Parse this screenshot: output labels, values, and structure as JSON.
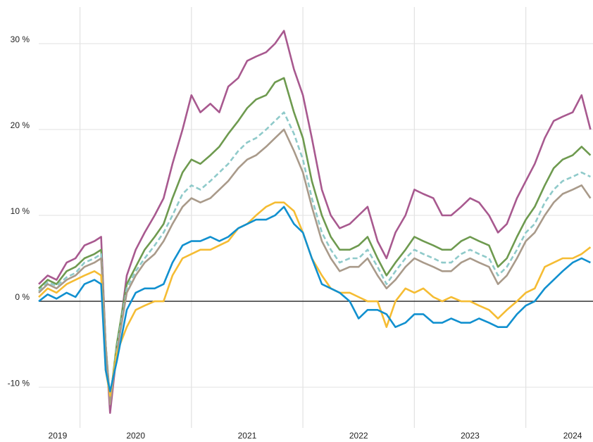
{
  "chart_data": {
    "type": "line",
    "x": [
      2019.63,
      2019.71,
      2019.79,
      2019.88,
      2019.96,
      2020.04,
      2020.13,
      2020.19,
      2020.23,
      2020.27,
      2020.33,
      2020.42,
      2020.5,
      2020.58,
      2020.67,
      2020.75,
      2020.83,
      2020.92,
      2021.0,
      2021.08,
      2021.17,
      2021.25,
      2021.33,
      2021.42,
      2021.5,
      2021.58,
      2021.67,
      2021.75,
      2021.83,
      2021.92,
      2022.0,
      2022.08,
      2022.17,
      2022.25,
      2022.33,
      2022.42,
      2022.5,
      2022.58,
      2022.67,
      2022.75,
      2022.83,
      2022.92,
      2023.0,
      2023.08,
      2023.17,
      2023.25,
      2023.33,
      2023.42,
      2023.5,
      2023.58,
      2023.67,
      2023.75,
      2023.83,
      2023.92,
      2024.0,
      2024.08,
      2024.17,
      2024.25,
      2024.33,
      2024.42,
      2024.5,
      2024.58
    ],
    "series": [
      {
        "color": "#a8598f",
        "dashed": false,
        "values": [
          2,
          3,
          2.5,
          4.5,
          5,
          6.5,
          7,
          7.5,
          -5,
          -13,
          -6,
          3,
          6,
          8,
          10,
          12,
          16,
          20,
          24,
          22,
          23,
          22,
          25,
          26,
          28,
          28.5,
          29,
          30,
          31.5,
          27,
          24,
          19,
          13,
          10,
          8.5,
          9,
          10,
          11,
          7,
          5,
          8,
          10,
          13,
          12.5,
          12,
          10,
          10,
          11,
          12,
          11.5,
          10,
          8,
          9,
          12,
          14,
          16,
          19,
          21,
          21.5,
          22,
          24,
          20
        ]
      },
      {
        "color": "#6e9a4f",
        "dashed": false,
        "values": [
          1.5,
          2.5,
          2,
          3.5,
          4,
          5,
          5.5,
          6,
          -5,
          -11.5,
          -5,
          2,
          4,
          6,
          7.5,
          9,
          12,
          15,
          16.5,
          16,
          17,
          18,
          19.5,
          21,
          22.5,
          23.5,
          24,
          25.5,
          26,
          22,
          19,
          14,
          10,
          7.5,
          6,
          6,
          6.5,
          7.5,
          5,
          3,
          4.5,
          6,
          7.5,
          7,
          6.5,
          6,
          6,
          7,
          7.5,
          7,
          6.5,
          4,
          5,
          7.5,
          9.5,
          11,
          13.5,
          15.5,
          16.5,
          17,
          18,
          17
        ]
      },
      {
        "color": "#8fcaca",
        "dashed": true,
        "values": [
          1.2,
          2.2,
          1.8,
          2.8,
          3.3,
          4.5,
          5,
          5.5,
          -5,
          -11.5,
          -5.5,
          1.5,
          3.5,
          5,
          6.5,
          8,
          10,
          12.5,
          13.5,
          13,
          14,
          15,
          16,
          17.5,
          18.5,
          19,
          20,
          21,
          22,
          19.5,
          16.5,
          12,
          8,
          6,
          4.5,
          5,
          5,
          6,
          4,
          2,
          3.5,
          5,
          6,
          5.5,
          5,
          4.5,
          4.5,
          5.5,
          6,
          5.5,
          5,
          3,
          4,
          6,
          8,
          9,
          11.5,
          13,
          14,
          14.5,
          15,
          14.5
        ]
      },
      {
        "color": "#a99a8a",
        "dashed": false,
        "values": [
          1,
          2,
          1.5,
          2.5,
          3,
          4,
          4.5,
          5,
          -5,
          -12,
          -6,
          1,
          3,
          4.5,
          5.5,
          7,
          9,
          11,
          12,
          11.5,
          12,
          13,
          14,
          15.5,
          16.5,
          17,
          18,
          19,
          20,
          17.5,
          15,
          11,
          7,
          5,
          3.5,
          4,
          4,
          5,
          3,
          1.5,
          2.5,
          4,
          5,
          4.5,
          4,
          3.5,
          3.5,
          4.5,
          5,
          4.5,
          4,
          2,
          3,
          5,
          7,
          8,
          10,
          11.5,
          12.5,
          13,
          13.5,
          12
        ]
      },
      {
        "color": "#f5bc33",
        "dashed": false,
        "values": [
          0.5,
          1.5,
          1,
          2,
          2.5,
          3,
          3.5,
          3,
          -8,
          -11,
          -6,
          -3,
          -1,
          -0.5,
          0,
          0,
          3,
          5,
          5.5,
          6,
          6,
          6.5,
          7,
          8.5,
          9,
          10,
          11,
          11.5,
          11.5,
          10.5,
          8,
          5,
          3,
          1.5,
          1,
          1,
          0.5,
          0,
          0,
          -3,
          0,
          1.5,
          1,
          1.5,
          0.5,
          0,
          0.5,
          0,
          0,
          -0.5,
          -1,
          -2,
          -1,
          0,
          1,
          1.5,
          4,
          4.5,
          5,
          5,
          5.5,
          6.3
        ]
      },
      {
        "color": "#1190cf",
        "dashed": false,
        "values": [
          0,
          0.8,
          0.3,
          1,
          0.5,
          2,
          2.5,
          2,
          -8,
          -10.5,
          -7,
          -1,
          1,
          1.5,
          1.5,
          2,
          4.5,
          6.5,
          7,
          7,
          7.5,
          7,
          7.5,
          8.5,
          9,
          9.5,
          9.5,
          10,
          11,
          9,
          8,
          5,
          2,
          1.5,
          1,
          0,
          -2,
          -1,
          -1,
          -1.5,
          -3,
          -2.5,
          -1.5,
          -1.5,
          -2.5,
          -2.5,
          -2,
          -2.5,
          -2.5,
          -2,
          -2.5,
          -3,
          -3,
          -1.5,
          -0.5,
          0,
          1.5,
          2.5,
          3.5,
          4.5,
          5,
          4.5
        ]
      }
    ],
    "xlim": [
      2019.63,
      2024.59
    ],
    "xticks": [
      {
        "value": 2019.8,
        "label": "2019"
      },
      {
        "value": 2020.5,
        "label": "2020"
      },
      {
        "value": 2021.5,
        "label": "2021"
      },
      {
        "value": 2022.5,
        "label": "2022"
      },
      {
        "value": 2023.5,
        "label": "2023"
      },
      {
        "value": 2024.42,
        "label": "2024"
      }
    ],
    "xgrid": [
      2020,
      2021,
      2022,
      2023,
      2024
    ],
    "ylim": [
      -14.5,
      34.3
    ],
    "yticks": [
      {
        "value": -10,
        "label": "-10 %"
      },
      {
        "value": 0,
        "label": "0 %"
      },
      {
        "value": 10,
        "label": "10 %"
      },
      {
        "value": 20,
        "label": "20 %"
      },
      {
        "value": 30,
        "label": "30 %"
      }
    ],
    "grid": true
  }
}
